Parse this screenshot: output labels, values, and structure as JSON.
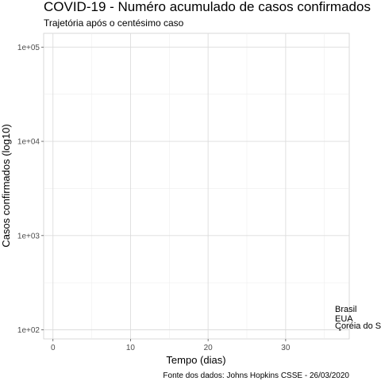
{
  "chart_data": {
    "type": "line",
    "title": "COVID-19 - Numéro acumulado de casos confirmados",
    "subtitle": "Trajetória após o centésimo caso",
    "xlabel": "Tempo (dias)",
    "ylabel": "Casos confirmados (log10)",
    "caption": "Fonte dos dados: Johns Hopkins CSSE - 26/03/2020",
    "x_ticks": [
      0,
      10,
      20,
      30
    ],
    "y_ticks": [
      100,
      1000,
      10000,
      100000
    ],
    "y_tick_labels": [
      "1e+02",
      "1e+03",
      "1e+04",
      "1e+05"
    ],
    "xlim": [
      -1.2,
      38.2
    ],
    "ylim": [
      80,
      140000
    ],
    "y_scale": "log10",
    "grid": true,
    "series": [
      {
        "name": "Brasil",
        "x": [
          37
        ],
        "y": [
          100
        ]
      },
      {
        "name": "EUA",
        "x": [
          37
        ],
        "y": [
          100
        ]
      },
      {
        "name": "Coréia do S.",
        "x": [
          37
        ],
        "y": [
          100
        ]
      }
    ],
    "series_labels": [
      "Brasil",
      "EUA",
      "Coréia do S."
    ]
  }
}
